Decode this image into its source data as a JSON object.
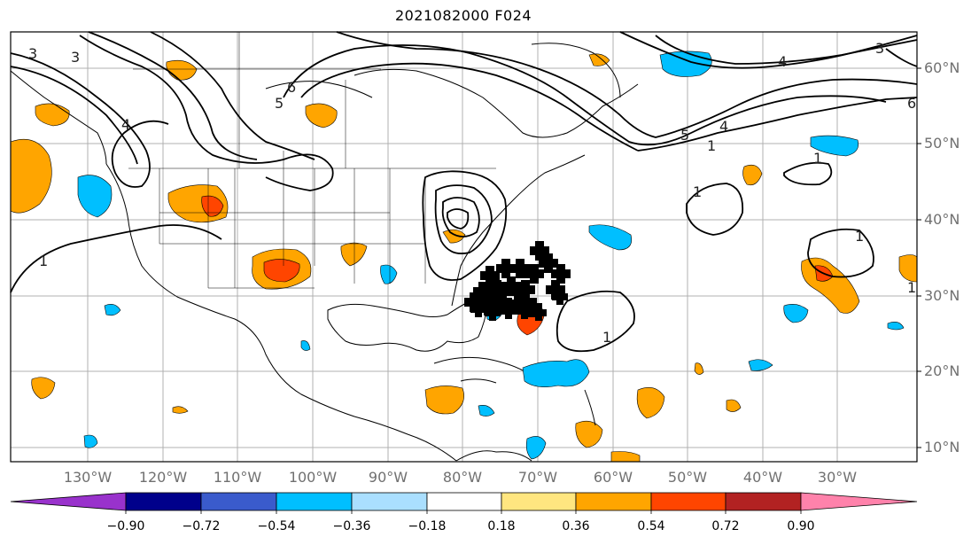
{
  "title": "2021082000 F024",
  "lat_labels": [
    "60°N",
    "50°N",
    "40°N",
    "30°N",
    "20°N",
    "10°N"
  ],
  "lon_labels": [
    "130°W",
    "120°W",
    "110°W",
    "100°W",
    "90°W",
    "80°W",
    "70°W",
    "60°W",
    "50°W",
    "40°W",
    "30°W"
  ],
  "colorbar": {
    "ticks": [
      "−0.90",
      "−0.72",
      "−0.54",
      "−0.36",
      "−0.18",
      "0.18",
      "0.36",
      "0.54",
      "0.72",
      "0.90"
    ],
    "colors": [
      "#9932cc",
      "#00008b",
      "#3a5bcc",
      "#00bfff",
      "#aadfff",
      "#ffffff",
      "#ffe680",
      "#ffa500",
      "#ff4500",
      "#b22222",
      "#ff82ab"
    ]
  },
  "contour_labels": [
    "3",
    "3",
    "5",
    "6",
    "4",
    "4",
    "6",
    "3",
    "5",
    "1",
    "4",
    "1",
    "1",
    "1",
    "1",
    "1",
    "1"
  ],
  "marker": "plus-cluster"
}
